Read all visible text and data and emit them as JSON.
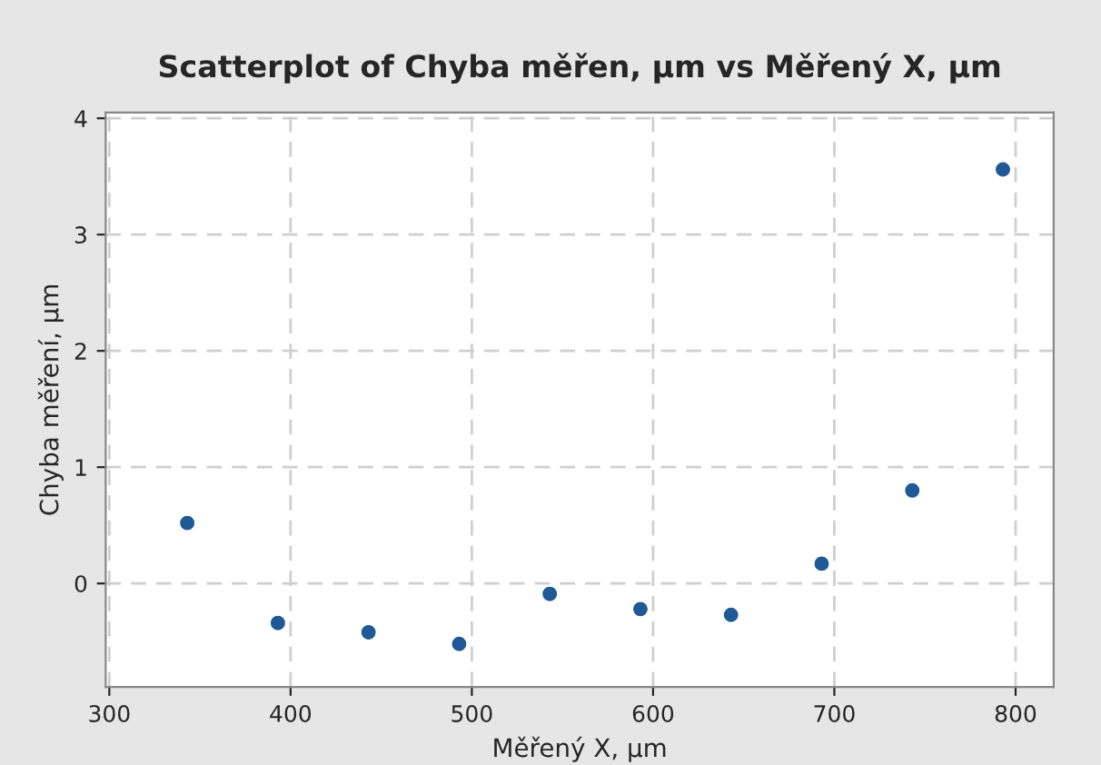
{
  "chart_data": {
    "type": "scatter",
    "title": "Scatterplot of Chyba měřen, µm vs Měřený X, µm",
    "xlabel": "Měřený X, µm",
    "ylabel": "Chyba měření, µm",
    "x": [
      343,
      393,
      443,
      493,
      543,
      593,
      643,
      693,
      743,
      793
    ],
    "series": [
      {
        "color": "#1f5a96",
        "values": [
          0.52,
          -0.34,
          -0.42,
          -0.52,
          -0.09,
          -0.22,
          -0.27,
          0.17,
          0.8,
          3.56
        ]
      }
    ],
    "xlim": [
      298,
      821
    ],
    "ylim": [
      -0.89,
      4.05
    ],
    "xticks": [
      300,
      400,
      500,
      600,
      700,
      800
    ],
    "yticks": [
      0,
      1,
      2,
      3,
      4
    ],
    "grid": true,
    "marker": "circle"
  }
}
